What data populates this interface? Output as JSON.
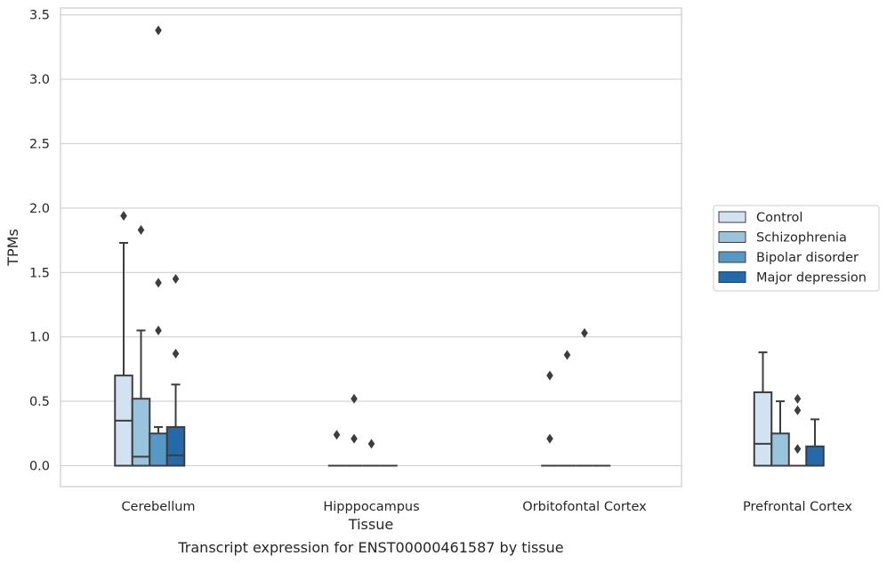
{
  "chart_data": {
    "type": "box",
    "title": "",
    "xlabel": "Tissue",
    "ylabel": "TPMs",
    "ylim": [
      -0.17,
      3.56
    ],
    "yticks": [
      0.0,
      0.5,
      1.0,
      1.5,
      2.0,
      2.5,
      3.0,
      3.5
    ],
    "ytick_labels": [
      "0.0",
      "0.5",
      "1.0",
      "1.5",
      "2.0",
      "2.5",
      "3.0",
      "3.5"
    ],
    "grid": "horizontal",
    "legend_position": "right",
    "categories": [
      "Cerebellum",
      "Hipppocampus",
      "Orbitofontal Cortex",
      "Prefrontal Cortex"
    ],
    "series": [
      {
        "name": "Control",
        "color": "#d1e2f2",
        "boxes": [
          {
            "q1": 0.0,
            "median": 0.35,
            "q3": 0.7,
            "whisker_low": 0.0,
            "whisker_high": 1.73,
            "outliers": [
              1.94
            ]
          },
          {
            "q1": 0.0,
            "median": 0.0,
            "q3": 0.0,
            "whisker_low": 0.0,
            "whisker_high": 0.0,
            "outliers": [
              0.24
            ]
          },
          {
            "q1": 0.0,
            "median": 0.0,
            "q3": 0.0,
            "whisker_low": 0.0,
            "whisker_high": 0.0,
            "outliers": [
              0.21,
              0.7
            ]
          },
          {
            "q1": 0.0,
            "median": 0.17,
            "q3": 0.57,
            "whisker_low": 0.0,
            "whisker_high": 0.88,
            "outliers": []
          }
        ]
      },
      {
        "name": "Schizophrenia",
        "color": "#9ac3de",
        "boxes": [
          {
            "q1": 0.0,
            "median": 0.07,
            "q3": 0.52,
            "whisker_low": 0.0,
            "whisker_high": 1.05,
            "outliers": [
              1.83
            ]
          },
          {
            "q1": 0.0,
            "median": 0.0,
            "q3": 0.0,
            "whisker_low": 0.0,
            "whisker_high": 0.0,
            "outliers": [
              0.21,
              0.52
            ]
          },
          {
            "q1": 0.0,
            "median": 0.0,
            "q3": 0.0,
            "whisker_low": 0.0,
            "whisker_high": 0.0,
            "outliers": [
              0.86
            ]
          },
          {
            "q1": 0.0,
            "median": 0.0,
            "q3": 0.25,
            "whisker_low": 0.0,
            "whisker_high": 0.5,
            "outliers": []
          }
        ]
      },
      {
        "name": "Bipolar disorder",
        "color": "#5699c7",
        "boxes": [
          {
            "q1": 0.0,
            "median": 0.0,
            "q3": 0.25,
            "whisker_low": 0.0,
            "whisker_high": 0.3,
            "outliers": [
              1.05,
              1.42,
              3.38
            ]
          },
          {
            "q1": 0.0,
            "median": 0.0,
            "q3": 0.0,
            "whisker_low": 0.0,
            "whisker_high": 0.0,
            "outliers": [
              0.17
            ]
          },
          {
            "q1": 0.0,
            "median": 0.0,
            "q3": 0.0,
            "whisker_low": 0.0,
            "whisker_high": 0.0,
            "outliers": [
              1.03
            ]
          },
          {
            "q1": 0.0,
            "median": 0.0,
            "q3": 0.0,
            "whisker_low": 0.0,
            "whisker_high": 0.0,
            "outliers": [
              0.13,
              0.43,
              0.52
            ]
          }
        ]
      },
      {
        "name": "Major depression",
        "color": "#2469a9",
        "boxes": [
          {
            "q1": 0.0,
            "median": 0.08,
            "q3": 0.3,
            "whisker_low": 0.0,
            "whisker_high": 0.63,
            "outliers": [
              0.87,
              1.45
            ]
          },
          {
            "q1": 0.0,
            "median": 0.0,
            "q3": 0.0,
            "whisker_low": 0.0,
            "whisker_high": 0.0,
            "outliers": []
          },
          {
            "q1": 0.0,
            "median": 0.0,
            "q3": 0.0,
            "whisker_low": 0.0,
            "whisker_high": 0.0,
            "outliers": []
          },
          {
            "q1": 0.0,
            "median": 0.0,
            "q3": 0.15,
            "whisker_low": 0.0,
            "whisker_high": 0.36,
            "outliers": []
          }
        ]
      }
    ]
  },
  "caption": "Transcript expression for ENST00000461587 by tissue"
}
